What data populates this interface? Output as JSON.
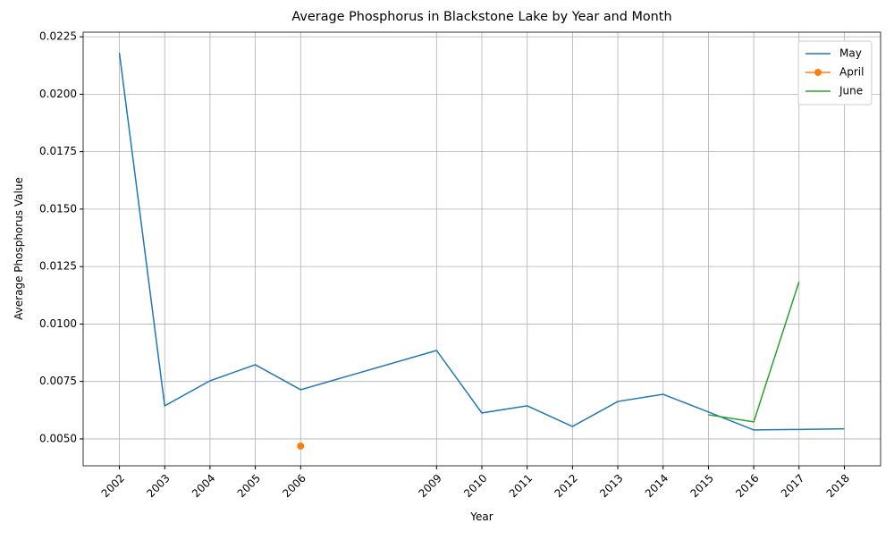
{
  "chart_data": {
    "type": "line",
    "title": "Average Phosphorus in Blackstone Lake by Year and Month",
    "x_label": "Year",
    "y_label": "Average Phosphorus Value",
    "xlim": [
      2001.2,
      2018.8
    ],
    "xticks": [
      2002,
      2003,
      2004,
      2005,
      2006,
      2009,
      2010,
      2011,
      2012,
      2013,
      2014,
      2015,
      2016,
      2017,
      2018
    ],
    "ylim": [
      0.00383,
      0.0227
    ],
    "yticks": [
      {
        "value": 0.005,
        "label": "0.0050"
      },
      {
        "value": 0.0075,
        "label": "0.0075"
      },
      {
        "value": 0.01,
        "label": "0.0100"
      },
      {
        "value": 0.0125,
        "label": "0.0125"
      },
      {
        "value": 0.015,
        "label": "0.0150"
      },
      {
        "value": 0.0175,
        "label": "0.0175"
      },
      {
        "value": 0.02,
        "label": "0.0200"
      },
      {
        "value": 0.0225,
        "label": "0.0225"
      }
    ],
    "grid": true,
    "legend": "upper right",
    "series": [
      {
        "name": "May",
        "color": "#1f77b4",
        "marker": false,
        "x": [
          2002,
          2003,
          2004,
          2005,
          2006,
          2009,
          2010,
          2011,
          2012,
          2013,
          2014,
          2015,
          2016,
          2017,
          2018
        ],
        "values": [
          0.0218,
          0.00644,
          0.00753,
          0.00823,
          0.00714,
          0.00885,
          0.00613,
          0.00644,
          0.00554,
          0.00663,
          0.00694,
          0.00617,
          0.00539,
          0.00541,
          0.00544
        ]
      },
      {
        "name": "April",
        "color": "#ff7f0e",
        "marker": true,
        "x": [
          2006
        ],
        "values": [
          0.00469
        ]
      },
      {
        "name": "June",
        "color": "#2ca02c",
        "marker": false,
        "x": [
          2015,
          2016,
          2017
        ],
        "values": [
          0.00605,
          0.00574,
          0.01184
        ]
      }
    ]
  }
}
